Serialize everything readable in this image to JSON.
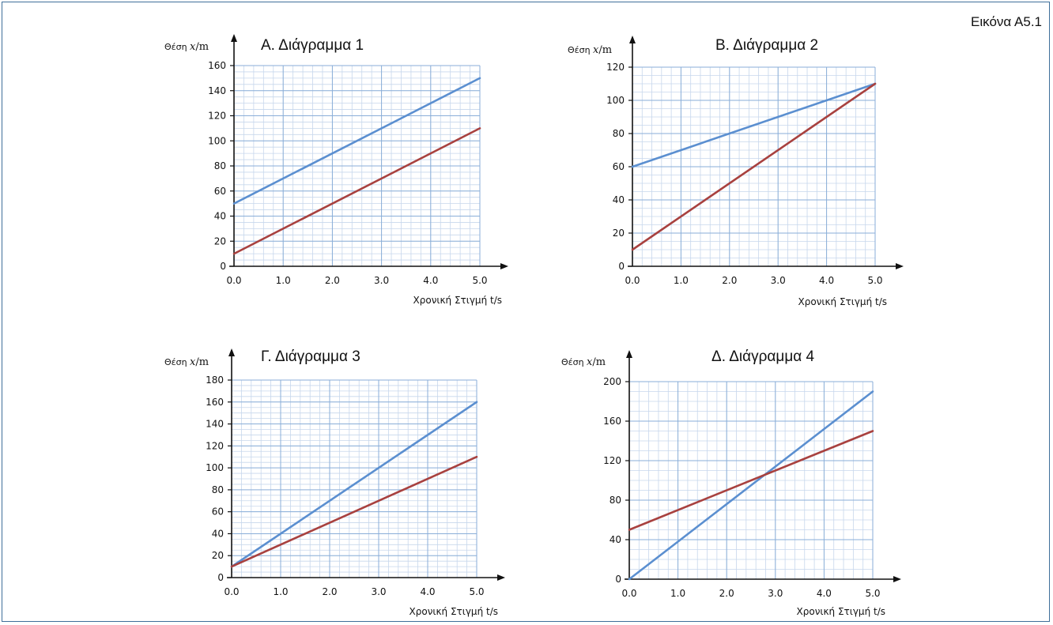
{
  "figure_label": "Εικόνα Α5.1",
  "colors": {
    "series_blue": "#5b8fd0",
    "series_red": "#a8413f",
    "grid_major": "#8aaed8",
    "grid_minor": "#c7d7ec",
    "axis": "#111111"
  },
  "chart_data": [
    {
      "type": "line",
      "title": "Α. Διάγραμμα 1",
      "ylabel_text": "Θέση",
      "ylabel_var": "x",
      "ylabel_unit": "/m",
      "xlabel": "Χρονική Στιγμή t/s",
      "xlim": [
        0,
        5
      ],
      "ylim": [
        0,
        160
      ],
      "xticks": [
        "0.0",
        "1.0",
        "2.0",
        "3.0",
        "4.0",
        "5.0"
      ],
      "yticks": [
        "0",
        "20",
        "40",
        "60",
        "80",
        "100",
        "120",
        "140",
        "160"
      ],
      "series": [
        {
          "color": "#5b8fd0",
          "x": [
            0,
            5
          ],
          "y": [
            50,
            150
          ]
        },
        {
          "color": "#a8413f",
          "x": [
            0,
            5
          ],
          "y": [
            10,
            110
          ]
        }
      ]
    },
    {
      "type": "line",
      "title": "Β. Διάγραμμα 2",
      "ylabel_text": "Θέση",
      "ylabel_var": "x",
      "ylabel_unit": "/m",
      "xlabel": "Χρονική Στιγμή t/s",
      "xlim": [
        0,
        5
      ],
      "ylim": [
        0,
        120
      ],
      "xticks": [
        "0.0",
        "1.0",
        "2.0",
        "3.0",
        "4.0",
        "5.0"
      ],
      "yticks": [
        "0",
        "20",
        "40",
        "60",
        "80",
        "100",
        "120"
      ],
      "series": [
        {
          "color": "#5b8fd0",
          "x": [
            0,
            5
          ],
          "y": [
            60,
            110
          ]
        },
        {
          "color": "#a8413f",
          "x": [
            0,
            5
          ],
          "y": [
            10,
            110
          ]
        }
      ]
    },
    {
      "type": "line",
      "title": "Γ. Διάγραμμα 3",
      "ylabel_text": "Θέση",
      "ylabel_var": "x",
      "ylabel_unit": "/m",
      "xlabel": "Χρονική Στιγμή t/s",
      "xlim": [
        0,
        5
      ],
      "ylim": [
        0,
        180
      ],
      "xticks": [
        "0.0",
        "1.0",
        "2.0",
        "3.0",
        "4.0",
        "5.0"
      ],
      "yticks": [
        "0",
        "20",
        "40",
        "60",
        "80",
        "100",
        "120",
        "140",
        "160",
        "180"
      ],
      "series": [
        {
          "color": "#5b8fd0",
          "x": [
            0,
            5
          ],
          "y": [
            10,
            160
          ]
        },
        {
          "color": "#a8413f",
          "x": [
            0,
            5
          ],
          "y": [
            10,
            110
          ]
        }
      ]
    },
    {
      "type": "line",
      "title": "Δ. Διάγραμμα 4",
      "ylabel_text": "Θέση",
      "ylabel_var": "x",
      "ylabel_unit": "/m",
      "xlabel": "Χρονική Στιγμή t/s",
      "xlim": [
        0,
        5
      ],
      "ylim": [
        0,
        200
      ],
      "xticks": [
        "0.0",
        "1.0",
        "2.0",
        "3.0",
        "4.0",
        "5.0"
      ],
      "yticks": [
        "0",
        "40",
        "80",
        "120",
        "160",
        "200"
      ],
      "series": [
        {
          "color": "#5b8fd0",
          "x": [
            0,
            5
          ],
          "y": [
            0,
            190
          ]
        },
        {
          "color": "#a8413f",
          "x": [
            0,
            5
          ],
          "y": [
            50,
            150
          ]
        }
      ]
    }
  ]
}
